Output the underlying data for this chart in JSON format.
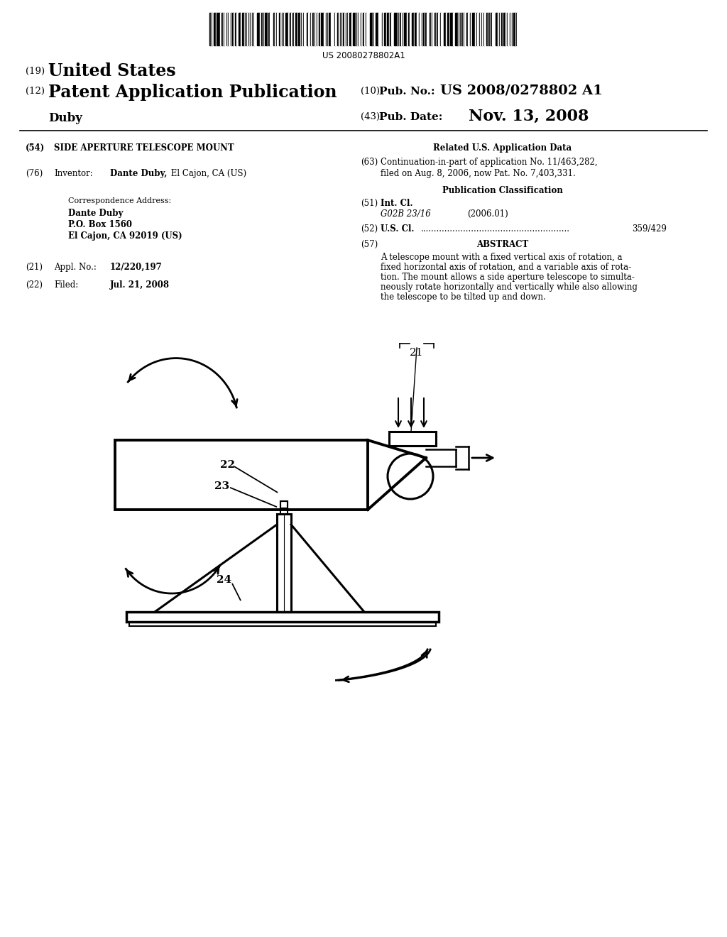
{
  "barcode_text": "US 20080278802A1",
  "header_line1_num": "(19)",
  "header_line1_text": "United States",
  "header_line2_num": "(12)",
  "header_line2_text": "Patent Application Publication",
  "header_line2_right_num": "(10)",
  "header_line2_right_label": "Pub. No.:",
  "header_line2_right_value": "US 2008/0278802 A1",
  "header_line3_left": "Duby",
  "header_line3_right_num": "(43)",
  "header_line3_right_label": "Pub. Date:",
  "header_line3_right_value": "Nov. 13, 2008",
  "field54_num": "(54)",
  "field54_text": "SIDE APERTURE TELESCOPE MOUNT",
  "field76_num": "(76)",
  "field76_label": "Inventor:",
  "field76_value": "Dante Duby,",
  "field76_value2": " El Cajon, CA (US)",
  "corr_label": "Correspondence Address:",
  "corr_line1": "Dante Duby",
  "corr_line2": "P.O. Box 1560",
  "corr_line3": "El Cajon, CA 92019 (US)",
  "field21_num": "(21)",
  "field21_label": "Appl. No.:",
  "field21_value": "12/220,197",
  "field22_num": "(22)",
  "field22_label": "Filed:",
  "field22_value": "Jul. 21, 2008",
  "right_related_header": "Related U.S. Application Data",
  "field63_num": "(63)",
  "field63_text1": "Continuation-in-part of application No. 11/463,282,",
  "field63_text2": "filed on Aug. 8, 2006, now Pat. No. 7,403,331.",
  "pubclass_header": "Publication Classification",
  "field51_num": "(51)",
  "field51_label": "Int. Cl.",
  "field51_class": "G02B 23/16",
  "field51_year": "(2006.01)",
  "field52_num": "(52)",
  "field52_label": "U.S. Cl.",
  "field52_dots": "........................................................",
  "field52_value": "359/429",
  "field57_num": "(57)",
  "field57_header": "ABSTRACT",
  "field57_text": "A telescope mount with a fixed vertical axis of rotation, a fixed horizontal axis of rotation, and a variable axis of rotation. The mount allows a side aperture telescope to simultaneously rotate horizontally and vertically while also allowing the telescope to be tilted up and down.",
  "bg_color": "#ffffff",
  "text_color": "#000000",
  "diagram_label21": "21",
  "diagram_label22": "22",
  "diagram_label23": "23",
  "diagram_label24": "24"
}
